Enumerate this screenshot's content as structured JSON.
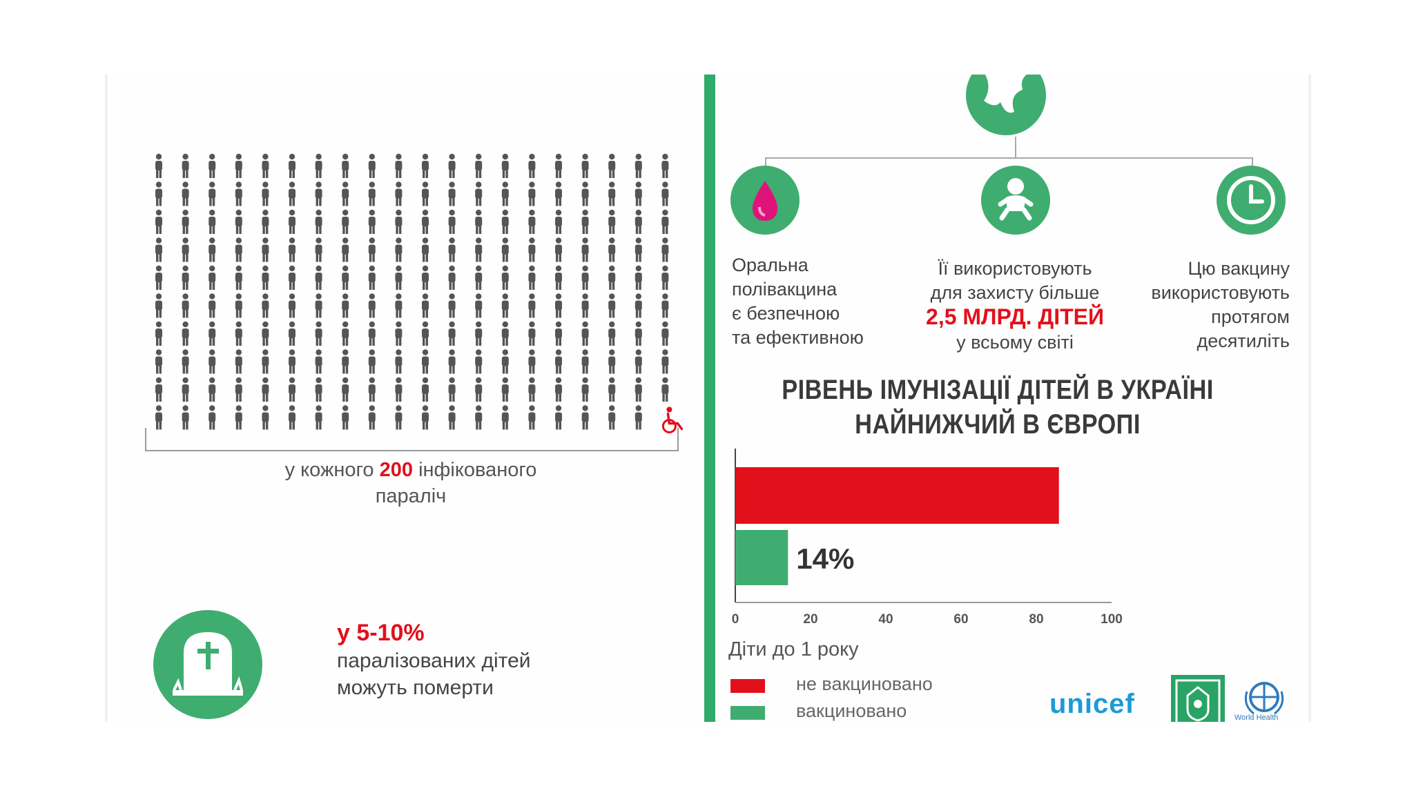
{
  "infographic": {
    "paralysis": {
      "prefix": "у кожного",
      "number": "200",
      "suffix": "інфікованого",
      "line2": "параліч"
    },
    "death": {
      "pct": "у 5-10%",
      "line1": "паралізованих дітей",
      "line2": "можуть померти"
    },
    "features": [
      {
        "icon": "drop-icon",
        "lines": [
          "Оральна",
          "полівакцина",
          "є безпечною",
          "та ефективною"
        ]
      },
      {
        "icon": "baby-icon",
        "line1": "Її використовують",
        "line2": "для захисту більше",
        "highlight": "2,5 МЛРД. ДІТЕЙ",
        "line3": "у всьому світі"
      },
      {
        "icon": "clock-icon",
        "lines": [
          "Цю вакцину",
          "використовують",
          "протягом",
          "десятиліть"
        ]
      }
    ],
    "logos": {
      "unicef": "unicef",
      "who": "World Health"
    },
    "colors": {
      "green": "#3fad70",
      "divider_green": "#2eaa6a",
      "red": "#e2101b"
    }
  },
  "chart_data": {
    "type": "bar",
    "orientation": "horizontal",
    "title": "РІВЕНЬ ІМУНІЗАЦІЇ ДІТЕЙ В УКРАЇНІ НАЙНИЖЧИЙ В ЄВРОПІ",
    "title_lines": [
      "РІВЕНЬ ІМУНІЗАЦІЇ ДІТЕЙ В УКРАЇНІ",
      "НАЙНИЖЧИЙ В ЄВРОПІ"
    ],
    "subtitle": "Діти до 1 року",
    "series": [
      {
        "name": "не вакциновано",
        "value": 86,
        "color": "#e2101b"
      },
      {
        "name": "вакциновано",
        "value": 14,
        "color": "#3fad70",
        "label": "14%"
      }
    ],
    "xlim": [
      0,
      100
    ],
    "xticks": [
      0,
      20,
      40,
      60,
      80,
      100
    ],
    "grid": false,
    "legend": "bottom-left"
  },
  "pictogram": {
    "rows": 10,
    "cols": 20,
    "highlight": "wheelchair-icon",
    "person_color": "#555555",
    "highlight_color": "#e2101b"
  }
}
